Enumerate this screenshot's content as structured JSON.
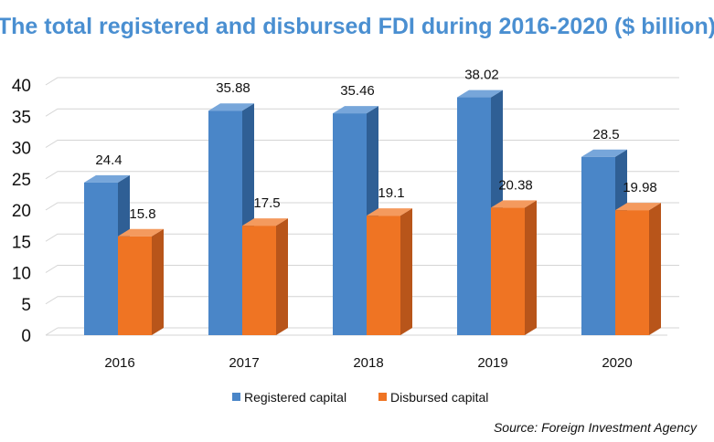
{
  "chart_data": {
    "type": "bar",
    "title": "The total registered and disbursed FDI during 2016-2020 ($ billion)",
    "categories": [
      "2016",
      "2017",
      "2018",
      "2019",
      "2020"
    ],
    "series": [
      {
        "name": "Registered capital",
        "values": [
          24.4,
          35.88,
          35.46,
          38.02,
          28.5
        ],
        "labels": [
          "24.4",
          "35.88",
          "35.46",
          "38.02",
          "28.5"
        ],
        "color": "#4a86c8"
      },
      {
        "name": "Disbursed capital",
        "values": [
          15.8,
          17.5,
          19.1,
          20.38,
          19.98
        ],
        "labels": [
          "15.8",
          "17.5",
          "19.1",
          "20.38",
          "19.98"
        ],
        "color": "#ef7423"
      }
    ],
    "yticks": [
      "0",
      "5",
      "10",
      "15",
      "20",
      "25",
      "30",
      "35",
      "40"
    ],
    "ylim": [
      0,
      40
    ],
    "grid": true,
    "legend_position": "bottom",
    "source": "Source: Foreign Investment Agency",
    "colors": {
      "title": "#4a8fd1",
      "registered_front": "#4a86c8",
      "registered_side": "#2f5f95",
      "registered_top": "#77a6da",
      "disbursed_front": "#ef7423",
      "disbursed_side": "#b8551a",
      "disbursed_top": "#f49a5e",
      "grid": "#d4d4d4"
    }
  }
}
